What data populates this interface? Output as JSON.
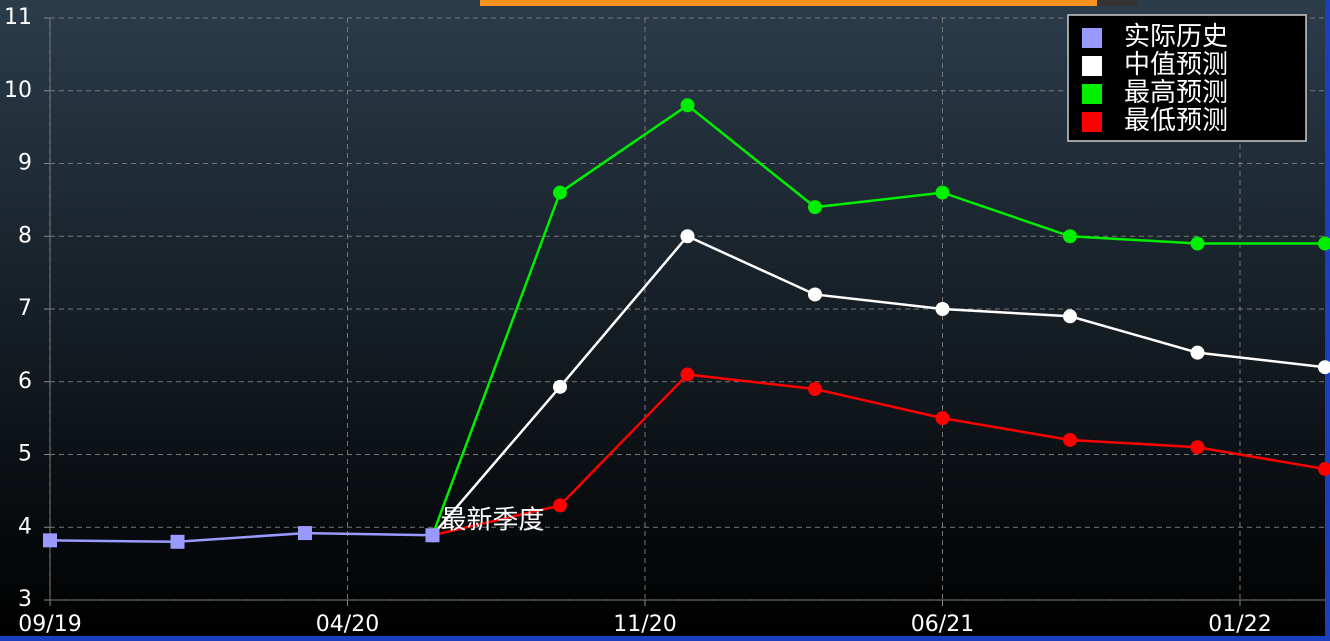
{
  "chart_data": {
    "type": "line",
    "x": [
      "09/19",
      "12/19",
      "03/20",
      "06/20",
      "09/20",
      "12/20",
      "03/21",
      "06/21",
      "09/21",
      "12/21",
      "03/22"
    ],
    "series": [
      {
        "name": "实际历史",
        "color": "#9999ff",
        "marker": "square",
        "values": [
          3.82,
          3.8,
          3.92,
          3.89,
          null,
          null,
          null,
          null,
          null,
          null,
          null
        ]
      },
      {
        "name": "中值预测",
        "color": "#ffffff",
        "marker": "circle",
        "values": [
          null,
          null,
          null,
          3.89,
          5.93,
          8.0,
          7.2,
          7.0,
          6.9,
          6.4,
          6.2
        ]
      },
      {
        "name": "最高预测",
        "color": "#00ee00",
        "marker": "circle",
        "values": [
          null,
          null,
          null,
          3.89,
          8.6,
          9.8,
          8.4,
          8.6,
          8.0,
          7.9,
          7.9
        ]
      },
      {
        "name": "最低预测",
        "color": "#ff0000",
        "marker": "circle",
        "values": [
          null,
          null,
          null,
          3.89,
          4.3,
          6.1,
          5.9,
          5.5,
          5.2,
          5.1,
          4.8
        ]
      }
    ],
    "xlim": [
      "09/19",
      "03/22"
    ],
    "xticks": [
      "09/19",
      "04/20",
      "11/20",
      "06/21",
      "01/22"
    ],
    "ylim": [
      3,
      11
    ],
    "yticks": [
      3,
      4,
      5,
      6,
      7,
      8,
      9,
      10,
      11
    ],
    "grid": true,
    "legend": "upper right",
    "annotations": [
      {
        "text": "最新季度",
        "x": "06/20",
        "y": 3.89
      }
    ]
  }
}
